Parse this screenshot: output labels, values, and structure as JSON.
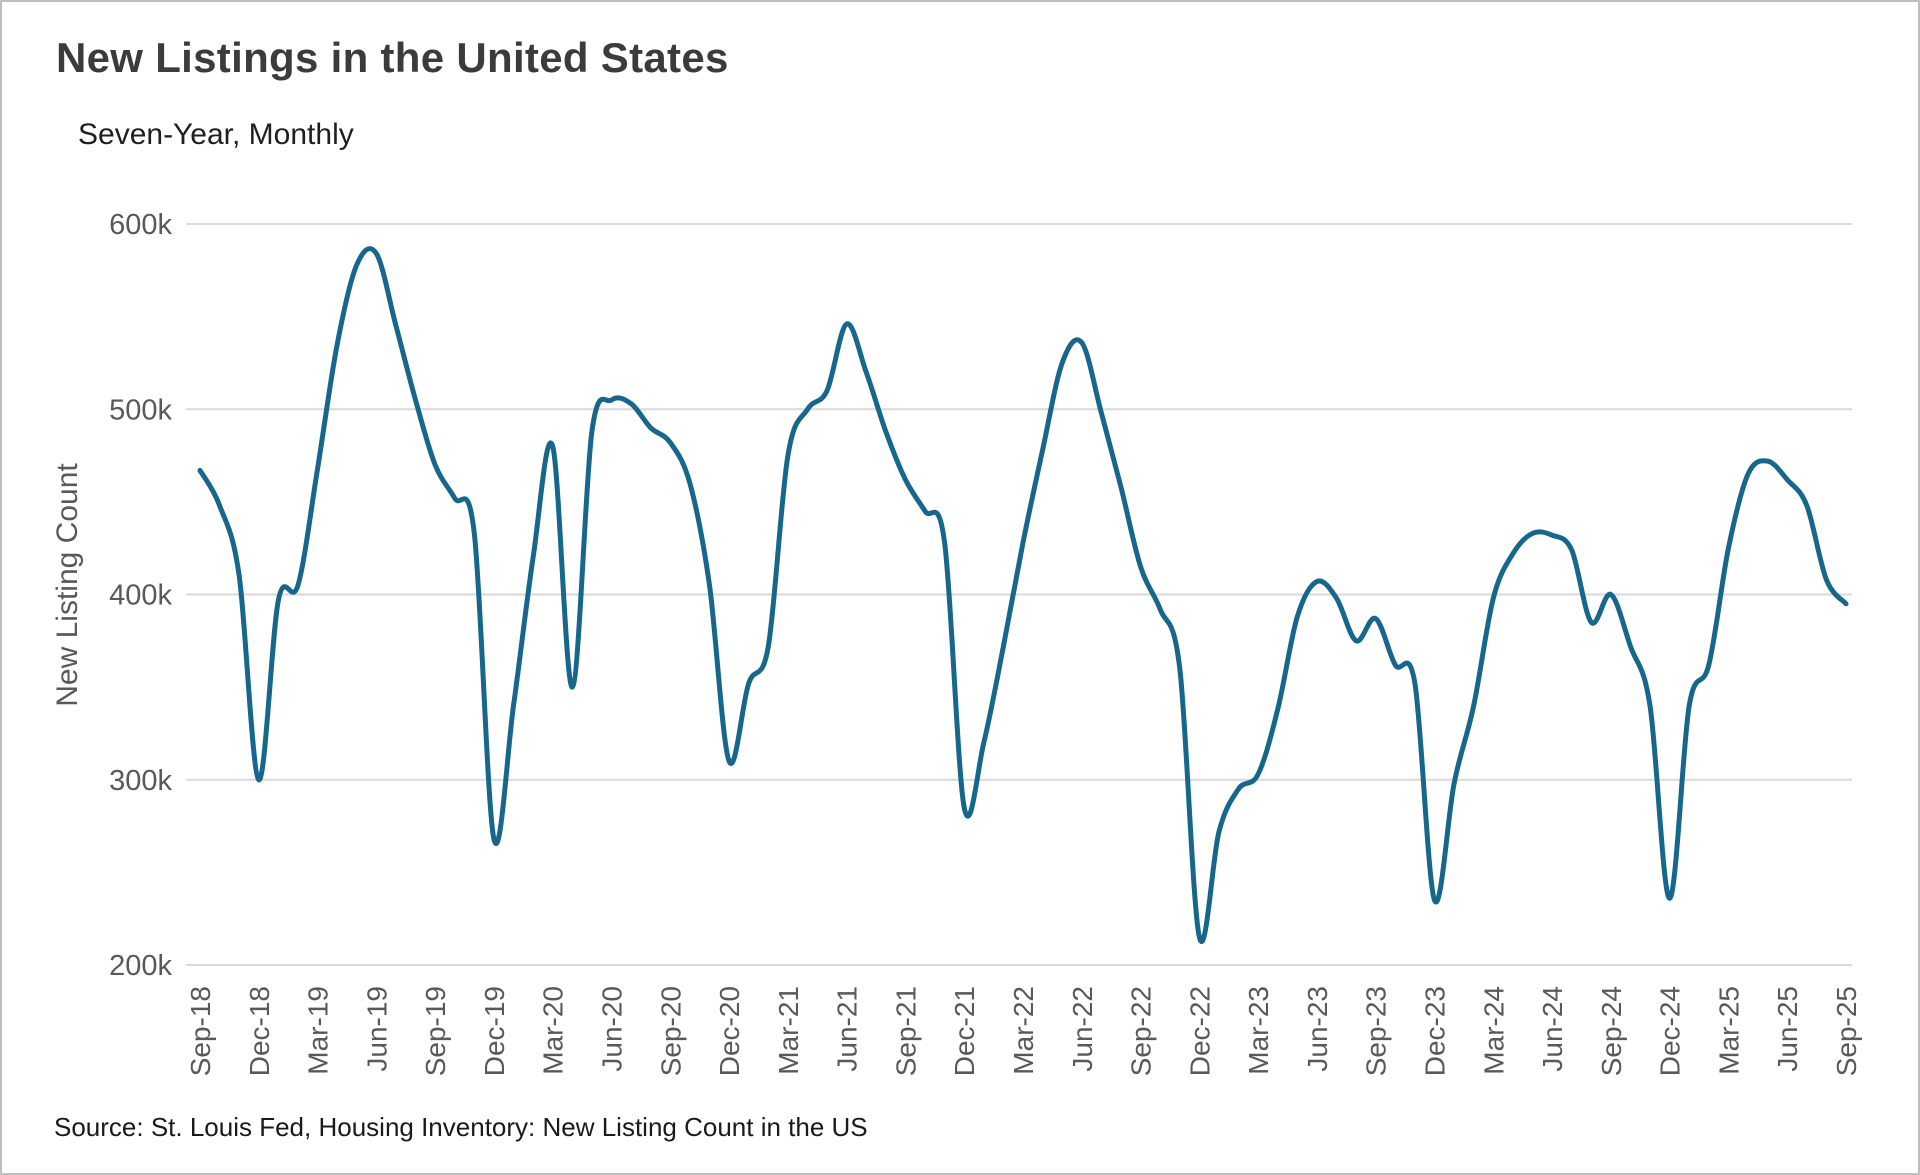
{
  "source": "Source: St. Louis Fed, Housing Inventory: New Listing Count in the US",
  "chart_data": {
    "type": "line",
    "title": "New Listings in the United States",
    "subtitle": "Seven-Year, Monthly",
    "xlabel": "",
    "ylabel": "New Listing Count",
    "ylim": [
      200000,
      600000
    ],
    "y_ticks": [
      "200k",
      "300k",
      "400k",
      "500k",
      "600k"
    ],
    "x_tick_every": 3,
    "grid": true,
    "legend_position": "none",
    "line_color": "#17678c",
    "x": [
      "Sep-18",
      "Oct-18",
      "Nov-18",
      "Dec-18",
      "Jan-19",
      "Feb-19",
      "Mar-19",
      "Apr-19",
      "May-19",
      "Jun-19",
      "Jul-19",
      "Aug-19",
      "Sep-19",
      "Oct-19",
      "Nov-19",
      "Dec-19",
      "Jan-20",
      "Feb-20",
      "Mar-20",
      "Apr-20",
      "May-20",
      "Jun-20",
      "Jul-20",
      "Aug-20",
      "Sep-20",
      "Oct-20",
      "Nov-20",
      "Dec-20",
      "Jan-21",
      "Feb-21",
      "Mar-21",
      "Apr-21",
      "May-21",
      "Jun-21",
      "Jul-21",
      "Aug-21",
      "Sep-21",
      "Oct-21",
      "Nov-21",
      "Dec-21",
      "Jan-22",
      "Feb-22",
      "Mar-22",
      "Apr-22",
      "May-22",
      "Jun-22",
      "Jul-22",
      "Aug-22",
      "Sep-22",
      "Oct-22",
      "Nov-22",
      "Dec-22",
      "Jan-23",
      "Feb-23",
      "Mar-23",
      "Apr-23",
      "May-23",
      "Jun-23",
      "Jul-23",
      "Aug-23",
      "Sep-23",
      "Oct-23",
      "Nov-23",
      "Dec-23",
      "Jan-24",
      "Feb-24",
      "Mar-24",
      "Apr-24",
      "May-24",
      "Jun-24",
      "Jul-24",
      "Aug-24",
      "Sep-24",
      "Oct-24",
      "Nov-24",
      "Dec-24",
      "Jan-25",
      "Feb-25",
      "Mar-25",
      "Apr-25",
      "May-25",
      "Jun-25",
      "Jul-25",
      "Aug-25",
      "Sep-25"
    ],
    "values": [
      467000,
      448000,
      410000,
      300000,
      397000,
      405000,
      468000,
      535000,
      578000,
      584000,
      545000,
      505000,
      470000,
      452000,
      433000,
      268000,
      340000,
      420000,
      480000,
      350000,
      488000,
      505000,
      503000,
      490000,
      482000,
      460000,
      405000,
      310000,
      352000,
      372000,
      475000,
      500000,
      510000,
      546000,
      520000,
      488000,
      462000,
      445000,
      428000,
      285000,
      320000,
      372000,
      428000,
      478000,
      525000,
      536000,
      498000,
      458000,
      415000,
      392000,
      360000,
      215000,
      272000,
      295000,
      303000,
      338000,
      388000,
      407000,
      398000,
      375000,
      387000,
      362000,
      352000,
      235000,
      298000,
      340000,
      398000,
      422000,
      433000,
      432000,
      424000,
      385000,
      400000,
      372000,
      340000,
      236000,
      340000,
      362000,
      425000,
      465000,
      472000,
      462000,
      448000,
      408000,
      395000
    ]
  }
}
